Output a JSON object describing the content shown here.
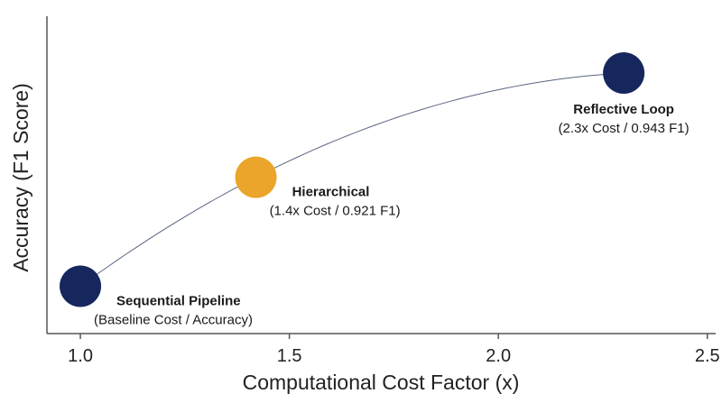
{
  "chart_data": {
    "type": "scatter",
    "title": "",
    "xlabel": "Computational Cost Factor (x)",
    "ylabel": "Accuracy (F1 Score)",
    "xlim": [
      0.92,
      2.52
    ],
    "ylim": [
      0.888,
      0.955
    ],
    "xticks": [
      {
        "value": 1.0,
        "label": "1.0"
      },
      {
        "value": 1.5,
        "label": "1.5"
      },
      {
        "value": 2.0,
        "label": "2.0"
      },
      {
        "value": 2.5,
        "label": "2.5"
      }
    ],
    "y_tick_labels_shown": false,
    "grid": false,
    "trend_line": true,
    "points": [
      {
        "name": "Sequential Pipeline",
        "detail": "(Baseline Cost / Accuracy)",
        "x": 1.0,
        "y": 0.898,
        "color": "#16275e",
        "label_pos": "right-below"
      },
      {
        "name": "Hierarchical",
        "detail": "(1.4x Cost / 0.921 F1)",
        "x": 1.42,
        "y": 0.921,
        "color": "#eaa52a",
        "label_pos": "right-below"
      },
      {
        "name": "Reflective Loop",
        "detail": "(2.3x Cost / 0.943 F1)",
        "x": 2.3,
        "y": 0.943,
        "color": "#16275e",
        "label_pos": "below"
      }
    ]
  },
  "colors": {
    "axis": "#555555",
    "trend": "#5a6580"
  }
}
